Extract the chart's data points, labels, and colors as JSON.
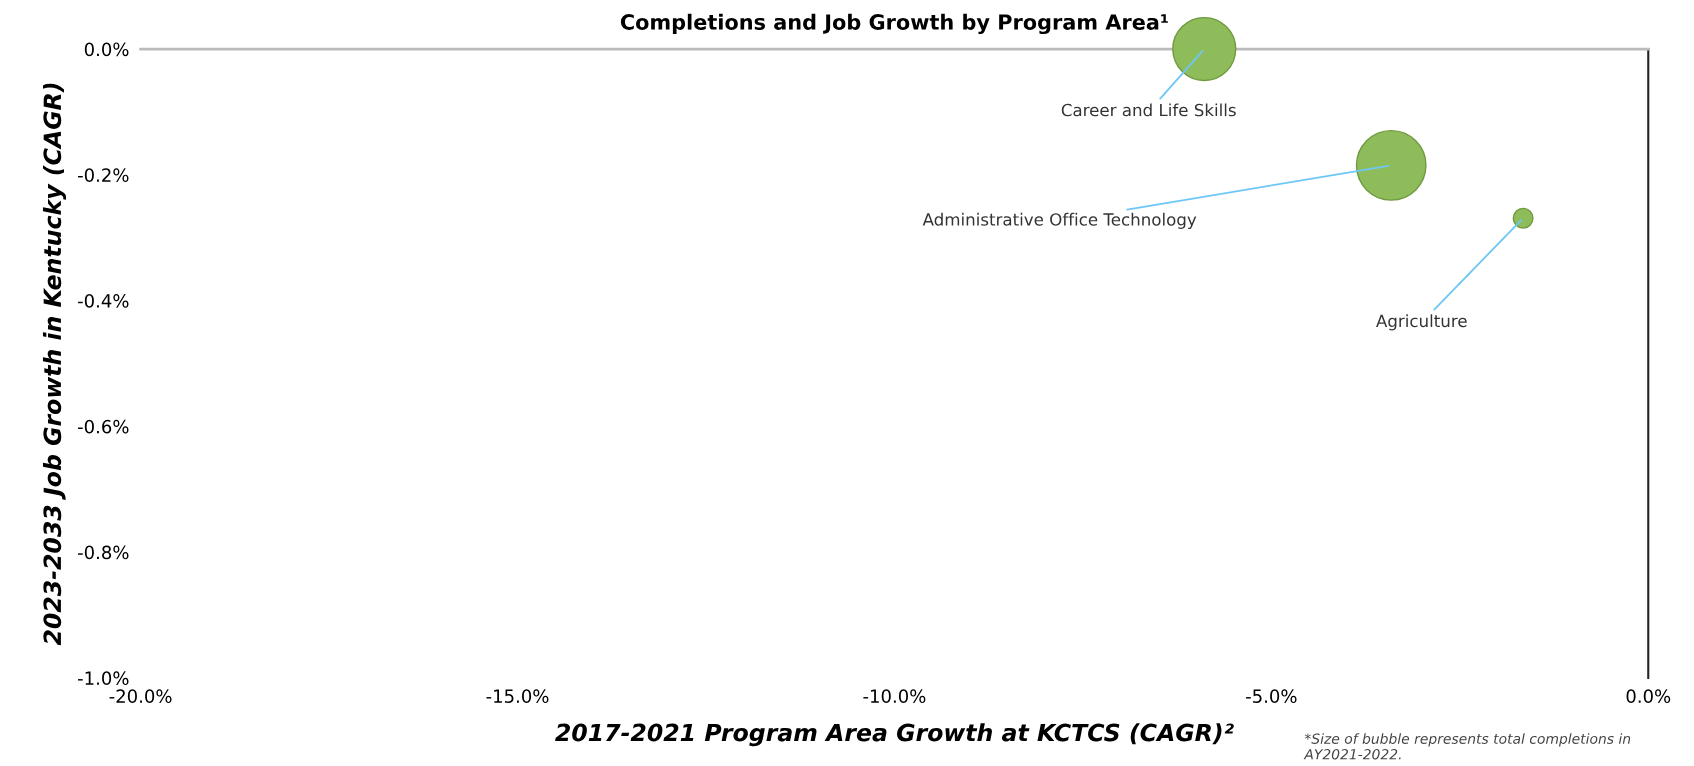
{
  "chart_data": {
    "type": "bubble",
    "title": "Completions and Job Growth by Program Area¹",
    "xlabel": "2017-2021 Program Area Growth at KCTCS (CAGR)²",
    "ylabel": "2023-2033 Job Growth in Kentucky (CAGR)",
    "series": [
      {
        "color": "#8fbc5a",
        "x": [
          -5.89,
          -3.41,
          -1.66
        ],
        "values": [
          0.0,
          -0.185,
          -0.269
        ],
        "sizes": [
          0.82,
          1,
          0.08
        ]
      }
    ],
    "annotations": [
      {
        "text": "Career and Life Skills",
        "x": -5.89,
        "y": 0.0
      },
      {
        "text": "Administrative Office Technology",
        "x": -3.41,
        "y": -0.185
      },
      {
        "text": "Agriculture",
        "x": -1.66,
        "y": -0.269
      },
      "*Size of bubble represents total completions in AY2021-2022."
    ],
    "xlim": [
      -20,
      0
    ],
    "xticks": [
      {
        "value": -20,
        "label": "-20.0%"
      },
      {
        "value": -15,
        "label": "-15.0%"
      },
      {
        "value": -10,
        "label": "-10.0%"
      },
      {
        "value": -5,
        "label": "-5.0%"
      },
      {
        "value": 0,
        "label": "0.0%"
      }
    ],
    "ylim": [
      -1,
      0
    ],
    "yticks": [
      {
        "value": -1,
        "label": "-1.0%"
      },
      {
        "value": -0.8,
        "label": "-0.8%"
      },
      {
        "value": -0.6,
        "label": "-0.6%"
      },
      {
        "value": -0.4,
        "label": "-0.4%"
      },
      {
        "value": -0.2,
        "label": "-0.2%"
      },
      {
        "value": 0,
        "label": "0.0%"
      }
    ],
    "grid": false,
    "legend": false
  }
}
